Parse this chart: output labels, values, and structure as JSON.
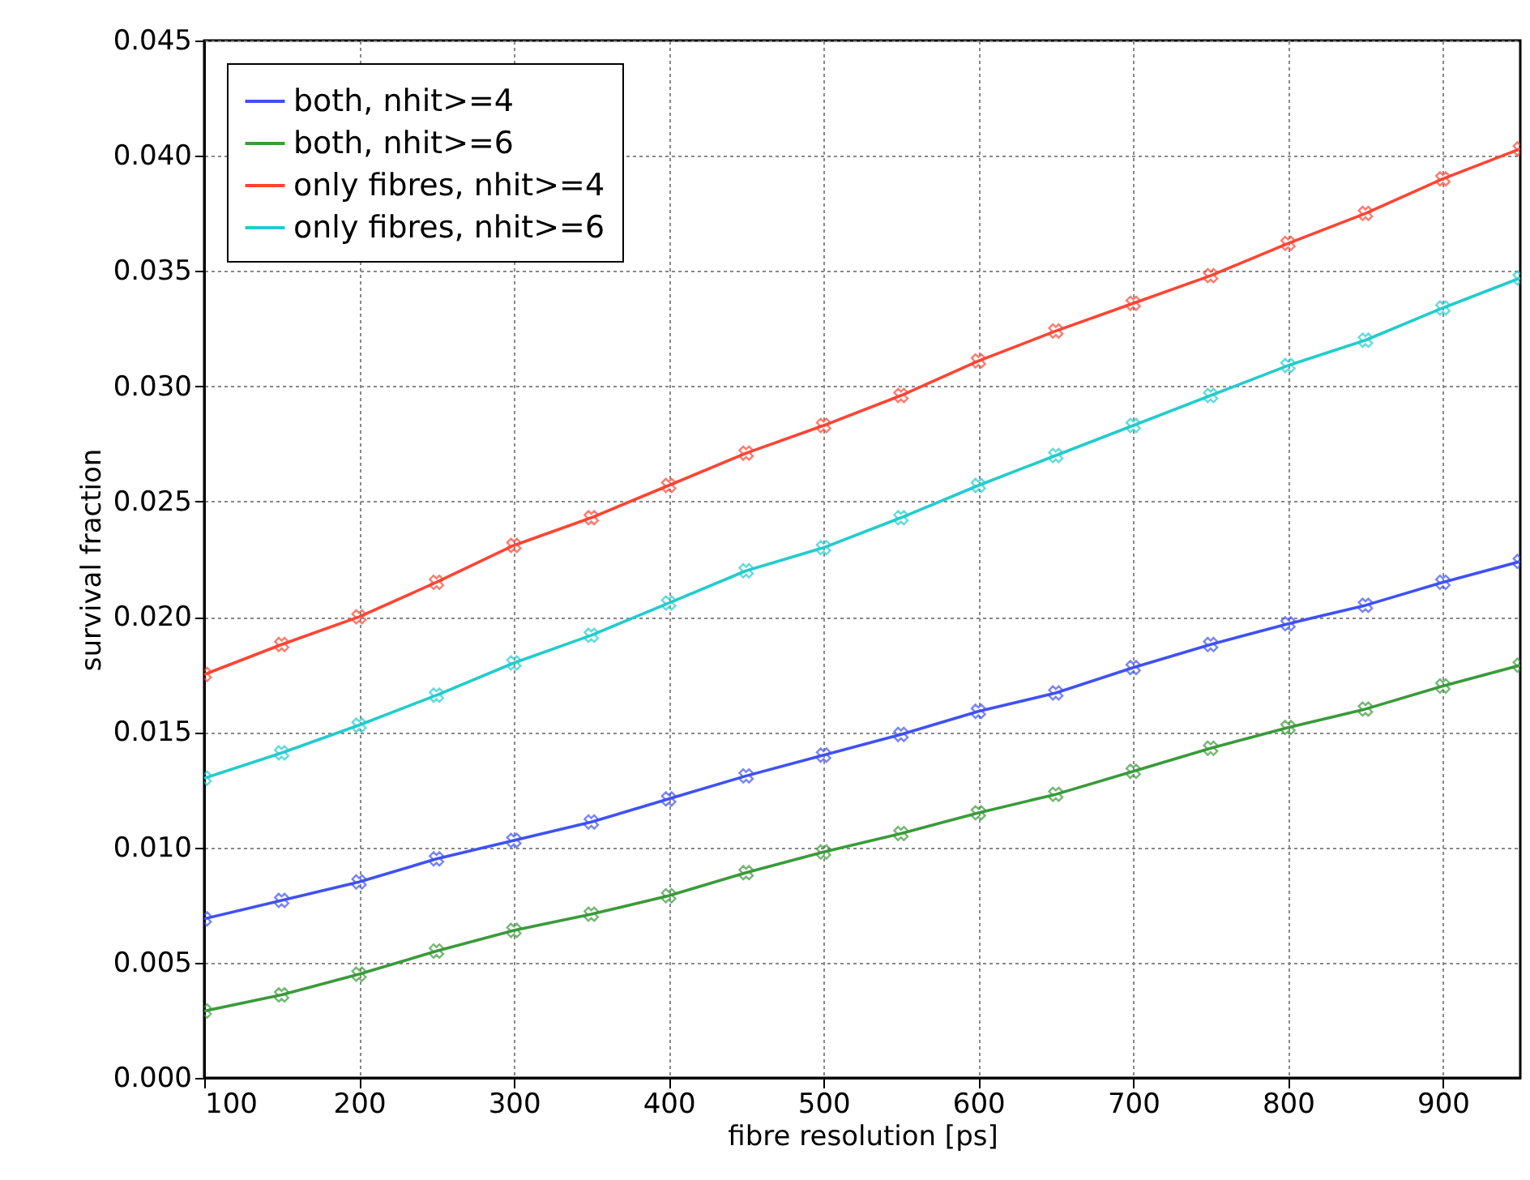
{
  "chart_data": {
    "type": "line",
    "xlabel": "fibre resolution [ps]",
    "ylabel": "survival fraction",
    "x": [
      100,
      150,
      200,
      250,
      300,
      350,
      400,
      450,
      500,
      550,
      600,
      650,
      700,
      750,
      800,
      850,
      900,
      950
    ],
    "series": [
      {
        "name": "both, nhit>=4",
        "color": "#3f51f5",
        "values": [
          0.0069,
          0.0077,
          0.0085,
          0.0095,
          0.0103,
          0.0111,
          0.0121,
          0.0131,
          0.014,
          0.0149,
          0.0159,
          0.0167,
          0.0178,
          0.0188,
          0.0197,
          0.0205,
          0.0215,
          0.0224
        ]
      },
      {
        "name": "both, nhit>=6",
        "color": "#3a9a3a",
        "values": [
          0.0029,
          0.0036,
          0.0045,
          0.0055,
          0.0064,
          0.0071,
          0.0079,
          0.0089,
          0.0098,
          0.0106,
          0.0115,
          0.0123,
          0.0133,
          0.0143,
          0.0152,
          0.016,
          0.017,
          0.0179
        ]
      },
      {
        "name": "only fibres, nhit>=4",
        "color": "#ff4433",
        "values": [
          0.0175,
          0.0188,
          0.02,
          0.0215,
          0.0231,
          0.0243,
          0.0257,
          0.0271,
          0.0283,
          0.0296,
          0.0311,
          0.0324,
          0.0336,
          0.0348,
          0.0362,
          0.0375,
          0.039,
          0.0403
        ]
      },
      {
        "name": "only fibres, nhit>=6",
        "color": "#22cccc",
        "values": [
          0.013,
          0.0141,
          0.0153,
          0.0166,
          0.018,
          0.0192,
          0.0206,
          0.022,
          0.023,
          0.0243,
          0.0257,
          0.027,
          0.0283,
          0.0296,
          0.0309,
          0.032,
          0.0334,
          0.0347
        ]
      }
    ],
    "xlim": [
      100,
      950
    ],
    "xticks": [
      100,
      200,
      300,
      400,
      500,
      600,
      700,
      800,
      900
    ],
    "ylim": [
      0,
      0.045
    ],
    "yticks": [
      {
        "value": 0,
        "label": "0.000"
      },
      {
        "value": 0.005,
        "label": "0.005"
      },
      {
        "value": 0.01,
        "label": "0.010"
      },
      {
        "value": 0.015,
        "label": "0.015"
      },
      {
        "value": 0.02,
        "label": "0.020"
      },
      {
        "value": 0.025,
        "label": "0.025"
      },
      {
        "value": 0.03,
        "label": "0.030"
      },
      {
        "value": 0.035,
        "label": "0.035"
      },
      {
        "value": 0.04,
        "label": "0.040"
      },
      {
        "value": 0.045,
        "label": "0.045"
      }
    ],
    "grid": true,
    "legend": "top left",
    "marker": "cross",
    "line_style": "solid"
  }
}
